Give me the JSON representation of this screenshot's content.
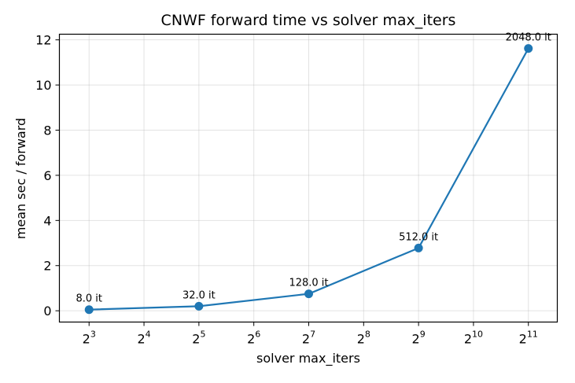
{
  "chart_data": {
    "type": "line",
    "title": "CNWF forward time vs solver max_iters",
    "xlabel": "solver max_iters",
    "ylabel": "mean sec / forward",
    "x_scale": "log2",
    "x_ticks": [
      {
        "base": "2",
        "exp": "3",
        "value": 8
      },
      {
        "base": "2",
        "exp": "4",
        "value": 16
      },
      {
        "base": "2",
        "exp": "5",
        "value": 32
      },
      {
        "base": "2",
        "exp": "6",
        "value": 64
      },
      {
        "base": "2",
        "exp": "7",
        "value": 128
      },
      {
        "base": "2",
        "exp": "8",
        "value": 256
      },
      {
        "base": "2",
        "exp": "9",
        "value": 512
      },
      {
        "base": "2",
        "exp": "10",
        "value": 1024
      },
      {
        "base": "2",
        "exp": "11",
        "value": 2048
      }
    ],
    "y_ticks": [
      "0",
      "2",
      "4",
      "6",
      "8",
      "10",
      "12"
    ],
    "xlim": [
      5.5,
      2950
    ],
    "ylim": [
      -0.5,
      12.25
    ],
    "grid": true,
    "color": "#1f77b4",
    "series": [
      {
        "x": [
          8,
          32,
          128,
          512,
          2048
        ],
        "y": [
          0.05,
          0.2,
          0.75,
          2.78,
          11.62
        ],
        "labels": [
          "8.0 it",
          "32.0 it",
          "128.0 it",
          "512.0 it",
          "2048.0 it"
        ]
      }
    ]
  }
}
